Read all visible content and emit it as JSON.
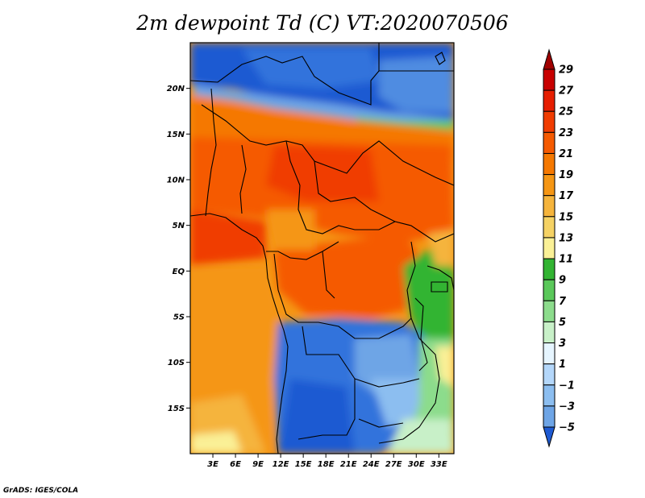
{
  "title": "2m dewpoint Td (C) VT:2020070506",
  "footer": "GrADS: IGES/COLA",
  "axes": {
    "lat_labels": [
      "20N",
      "15N",
      "10N",
      "5N",
      "EQ",
      "5S",
      "10S",
      "15S"
    ],
    "lat_values": [
      20,
      15,
      10,
      5,
      0,
      -5,
      -10,
      -15
    ],
    "lon_labels": [
      "3E",
      "6E",
      "9E",
      "12E",
      "15E",
      "18E",
      "21E",
      "24E",
      "27E",
      "30E",
      "33E"
    ],
    "lon_values": [
      3,
      6,
      9,
      12,
      15,
      18,
      21,
      24,
      27,
      30,
      33
    ],
    "lat_range": [
      -20,
      25
    ],
    "lon_range": [
      0,
      35
    ]
  },
  "colorbar": {
    "levels": [
      29,
      27,
      25,
      23,
      21,
      19,
      17,
      15,
      13,
      11,
      9,
      7,
      5,
      3,
      1,
      -1,
      -3,
      -5
    ],
    "labels": [
      "29",
      "27",
      "25",
      "23",
      "21",
      "19",
      "17",
      "15",
      "13",
      "11",
      "9",
      "7",
      "5",
      "3",
      "1",
      "−1",
      "−3",
      "−5"
    ],
    "colors": [
      "#a00000",
      "#c80000",
      "#e61e00",
      "#f03c00",
      "#f55a00",
      "#f57800",
      "#f59614",
      "#f5b43c",
      "#f5d264",
      "#faf096",
      "#32b432",
      "#5ac85a",
      "#8cdc8c",
      "#c8f0c8",
      "#e6f5ff",
      "#b4d7fa",
      "#8cbef0",
      "#6ea5e6",
      "#508ce1",
      "#3273dc",
      "#1e5ad2"
    ]
  }
}
